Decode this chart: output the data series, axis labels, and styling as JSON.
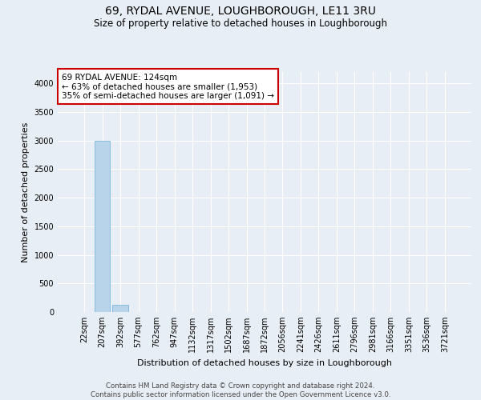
{
  "title": "69, RYDAL AVENUE, LOUGHBOROUGH, LE11 3RU",
  "subtitle": "Size of property relative to detached houses in Loughborough",
  "xlabel": "Distribution of detached houses by size in Loughborough",
  "ylabel": "Number of detached properties",
  "categories": [
    "22sqm",
    "207sqm",
    "392sqm",
    "577sqm",
    "762sqm",
    "947sqm",
    "1132sqm",
    "1317sqm",
    "1502sqm",
    "1687sqm",
    "1872sqm",
    "2056sqm",
    "2241sqm",
    "2426sqm",
    "2611sqm",
    "2796sqm",
    "2981sqm",
    "3166sqm",
    "3351sqm",
    "3536sqm",
    "3721sqm"
  ],
  "values": [
    3,
    3000,
    120,
    5,
    3,
    2,
    2,
    1,
    1,
    1,
    1,
    1,
    1,
    1,
    1,
    0,
    0,
    0,
    0,
    0,
    0
  ],
  "highlight_index": 0,
  "bar_color": "#b8d4ea",
  "bar_edge_color": "#6aaed6",
  "highlight_color": "#c0392b",
  "ylim": [
    0,
    4200
  ],
  "yticks": [
    0,
    500,
    1000,
    1500,
    2000,
    2500,
    3000,
    3500,
    4000
  ],
  "annotation_text": "69 RYDAL AVENUE: 124sqm\n← 63% of detached houses are smaller (1,953)\n35% of semi-detached houses are larger (1,091) →",
  "annotation_box_color": "#ffffff",
  "annotation_edge_color": "#cc0000",
  "footer_line1": "Contains HM Land Registry data © Crown copyright and database right 2024.",
  "footer_line2": "Contains public sector information licensed under the Open Government Licence v3.0.",
  "bg_color": "#e8eef5",
  "plot_bg_color": "#e8eef5",
  "grid_color": "#ffffff",
  "title_fontsize": 10,
  "subtitle_fontsize": 8.5,
  "tick_fontsize": 7,
  "ylabel_fontsize": 8,
  "xlabel_fontsize": 8,
  "annotation_fontsize": 7.5
}
